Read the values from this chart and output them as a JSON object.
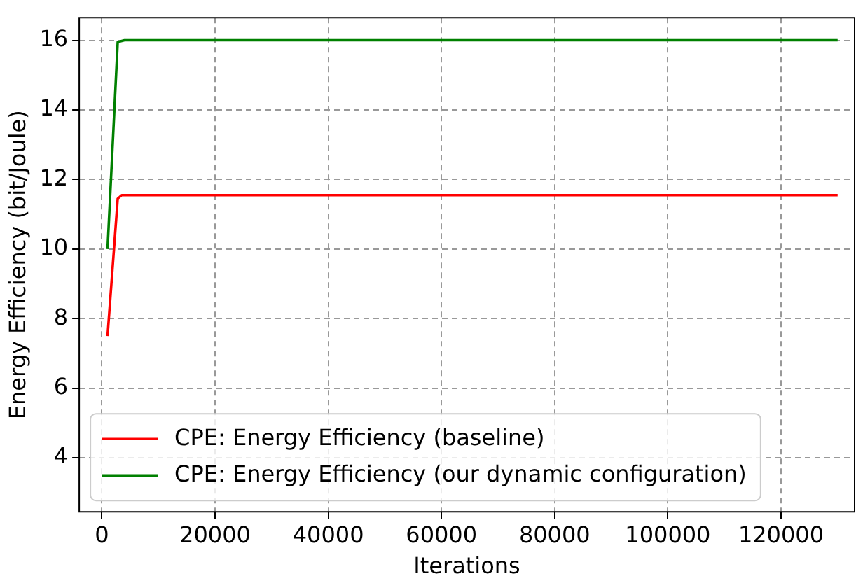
{
  "chart_data": {
    "type": "line",
    "xlabel": "Iterations",
    "ylabel": "Energy Efficiency (bit/Joule)",
    "xlim": [
      -4000,
      133000
    ],
    "xticks": [
      0,
      20000,
      40000,
      60000,
      80000,
      100000,
      120000
    ],
    "ylim": [
      2.45,
      16.65
    ],
    "yticks": [
      4,
      6,
      8,
      10,
      12,
      14,
      16
    ],
    "grid": true,
    "legend": "bottom left",
    "marker": "none",
    "line_style": "solid",
    "series": [
      {
        "name": "CPE: Energy Efficiency (baseline)",
        "color": "#ff0000",
        "x": [
          1000,
          2800,
          3500,
          130000
        ],
        "values": [
          7.5,
          11.45,
          11.55,
          11.55
        ]
      },
      {
        "name": "CPE: Energy Efficiency (our dynamic configuration)",
        "color": "#008000",
        "x": [
          1000,
          2800,
          4000,
          130000
        ],
        "values": [
          10,
          15.95,
          16,
          16
        ]
      }
    ]
  }
}
